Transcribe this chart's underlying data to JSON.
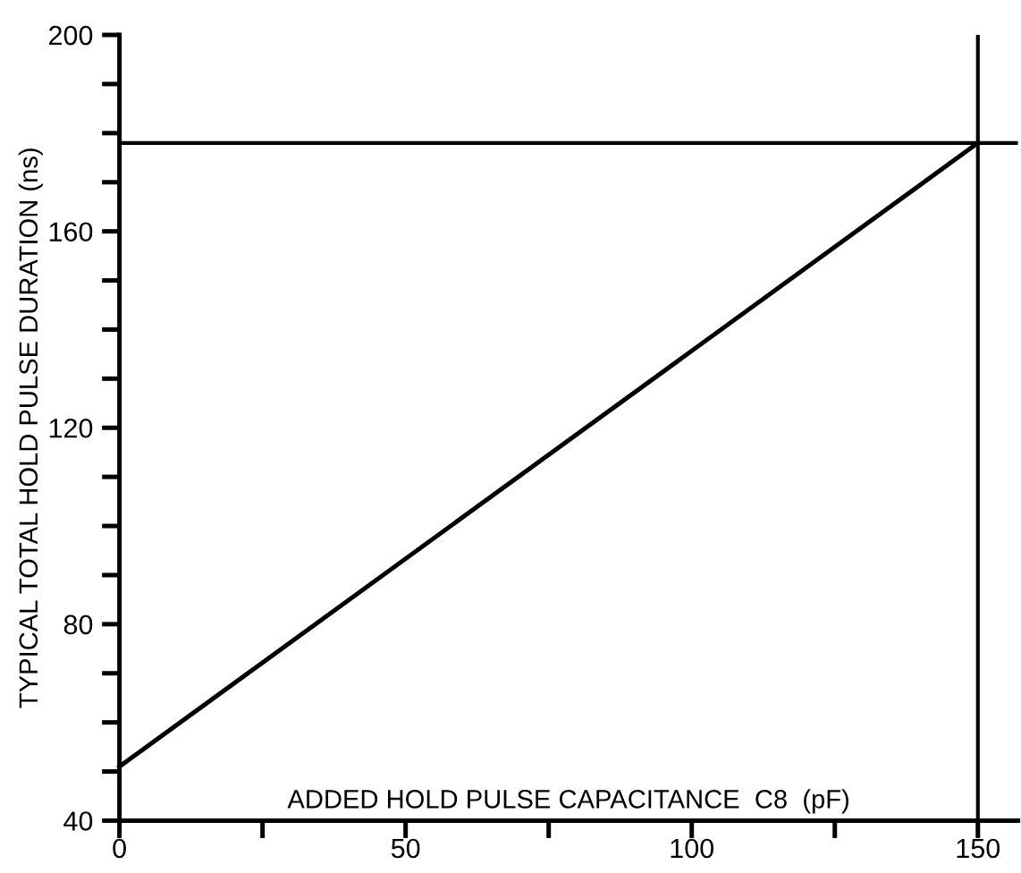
{
  "chart_data": {
    "type": "line",
    "xlabel": "ADDED HOLD PULSE CAPACITANCE  C8  (pF)",
    "ylabel": "TYPICAL TOTAL HOLD PULSE DURATION (ns)",
    "x": [
      0,
      150
    ],
    "series": [
      {
        "color": "#000000",
        "values": [
          51,
          178
        ]
      }
    ],
    "xlim": [
      0,
      157
    ],
    "ylim": [
      40,
      200
    ],
    "xticks": [
      0,
      {
        "value": 25,
        "label": null
      },
      50,
      {
        "value": 75,
        "label": null
      },
      100,
      {
        "value": 125,
        "label": null
      },
      150
    ],
    "yticks": [
      40,
      {
        "value": 50,
        "label": null
      },
      {
        "value": 60,
        "label": null
      },
      {
        "value": 70,
        "label": null
      },
      80,
      {
        "value": 90,
        "label": null
      },
      {
        "value": 100,
        "label": null
      },
      {
        "value": 110,
        "label": null
      },
      120,
      {
        "value": 130,
        "label": null
      },
      {
        "value": 140,
        "label": null
      },
      {
        "value": 150,
        "label": null
      },
      160,
      {
        "value": 170,
        "label": null
      },
      {
        "value": 180,
        "label": null
      },
      {
        "value": 190,
        "label": null
      },
      200
    ],
    "ref_lines": [
      {
        "axis": "y",
        "value": 178,
        "label": null,
        "color": "#000000"
      },
      {
        "axis": "x",
        "value": 150,
        "label": null,
        "color": "#000000"
      }
    ],
    "grid": false,
    "legend": false,
    "marker": "none",
    "line_style": "solid"
  }
}
